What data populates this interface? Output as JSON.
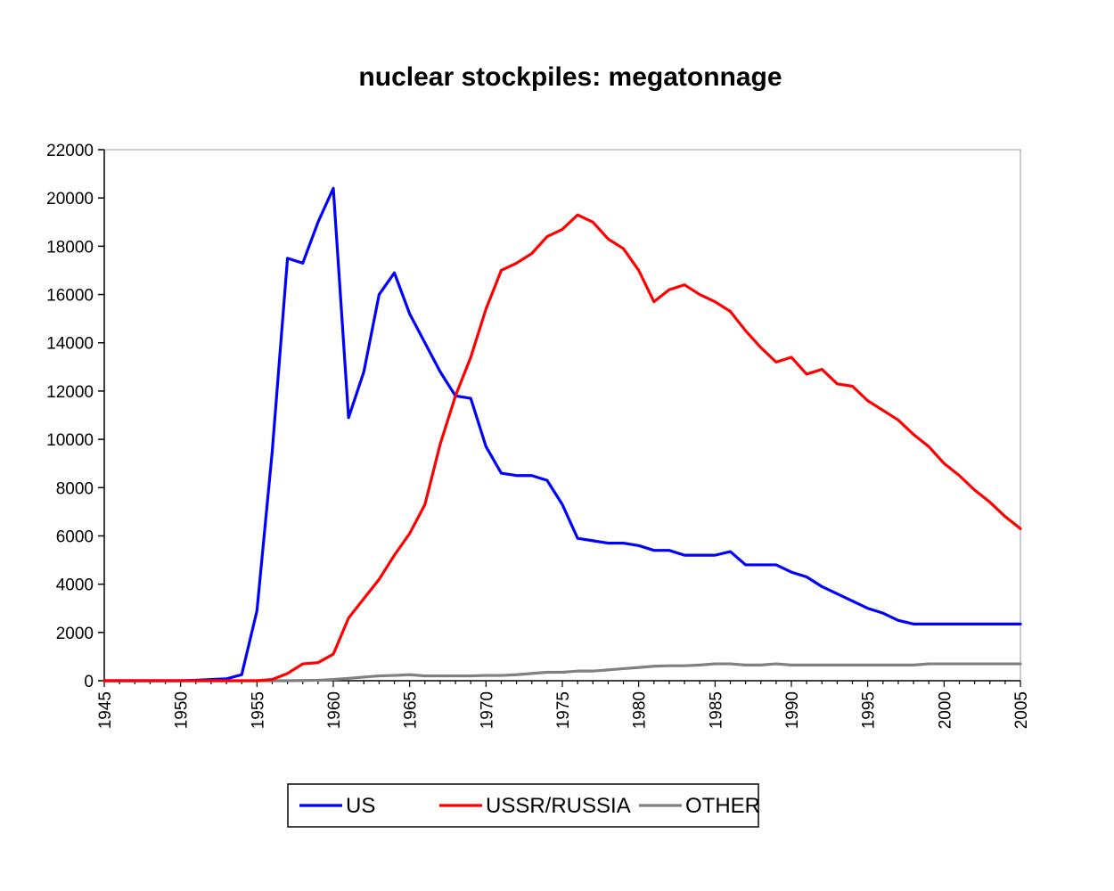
{
  "chart_data": {
    "type": "line",
    "title": "nuclear stockpiles:  megatonnage",
    "xlabel": "",
    "ylabel": "",
    "xlim": [
      1945,
      2005
    ],
    "ylim": [
      0,
      22000
    ],
    "yticks": [
      0,
      2000,
      4000,
      6000,
      8000,
      10000,
      12000,
      14000,
      16000,
      18000,
      20000,
      22000
    ],
    "xticks": [
      1945,
      1950,
      1955,
      1960,
      1965,
      1970,
      1975,
      1980,
      1985,
      1990,
      1995,
      2000,
      2005
    ],
    "grid": false,
    "legend_position": "bottom-center",
    "x": [
      1945,
      1946,
      1947,
      1948,
      1949,
      1950,
      1951,
      1952,
      1953,
      1954,
      1955,
      1956,
      1957,
      1958,
      1959,
      1960,
      1961,
      1962,
      1963,
      1964,
      1965,
      1966,
      1967,
      1968,
      1969,
      1970,
      1971,
      1972,
      1973,
      1974,
      1975,
      1976,
      1977,
      1978,
      1979,
      1980,
      1981,
      1982,
      1983,
      1984,
      1985,
      1986,
      1987,
      1988,
      1989,
      1990,
      1991,
      1992,
      1993,
      1994,
      1995,
      1996,
      1997,
      1998,
      1999,
      2000,
      2001,
      2002,
      2003,
      2004,
      2005
    ],
    "series": [
      {
        "name": "US",
        "color": "#0000ff",
        "values": [
          0,
          0,
          0,
          0,
          0,
          0,
          20,
          50,
          80,
          250,
          2900,
          9500,
          17500,
          17300,
          19000,
          20400,
          10900,
          12800,
          16000,
          16900,
          15200,
          14000,
          12800,
          11800,
          11700,
          9700,
          8600,
          8500,
          8500,
          8300,
          7300,
          5900,
          5800,
          5700,
          5700,
          5600,
          5400,
          5400,
          5200,
          5200,
          5200,
          5350,
          4800,
          4800,
          4800,
          4500,
          4300,
          3900,
          3600,
          3300,
          3000,
          2800,
          2500,
          2350,
          2350,
          2350,
          2350,
          2350,
          2350,
          2350,
          2350
        ]
      },
      {
        "name": "USSR/RUSSIA",
        "color": "#ff0000",
        "values": [
          0,
          0,
          0,
          0,
          0,
          0,
          0,
          0,
          0,
          0,
          0,
          50,
          300,
          700,
          750,
          1100,
          2600,
          3400,
          4200,
          5200,
          6100,
          7300,
          9800,
          11800,
          13400,
          15400,
          17000,
          17300,
          17700,
          18400,
          18700,
          19300,
          19000,
          18300,
          17900,
          17000,
          15700,
          16200,
          16400,
          16000,
          15700,
          15300,
          14500,
          13800,
          13200,
          13400,
          12700,
          12900,
          12300,
          12200,
          11600,
          11200,
          10800,
          10200,
          9700,
          9000,
          8500,
          7900,
          7400,
          6800,
          6300
        ]
      },
      {
        "name": "OTHER",
        "color": "#808080",
        "values": [
          0,
          0,
          0,
          0,
          0,
          0,
          0,
          0,
          0,
          0,
          0,
          0,
          0,
          10,
          20,
          50,
          100,
          150,
          200,
          220,
          250,
          200,
          200,
          200,
          200,
          220,
          220,
          250,
          300,
          350,
          350,
          400,
          400,
          450,
          500,
          550,
          600,
          620,
          620,
          650,
          700,
          700,
          650,
          650,
          700,
          650,
          650,
          650,
          650,
          650,
          650,
          650,
          650,
          650,
          700,
          700,
          700,
          700,
          700,
          700,
          700
        ]
      }
    ]
  }
}
